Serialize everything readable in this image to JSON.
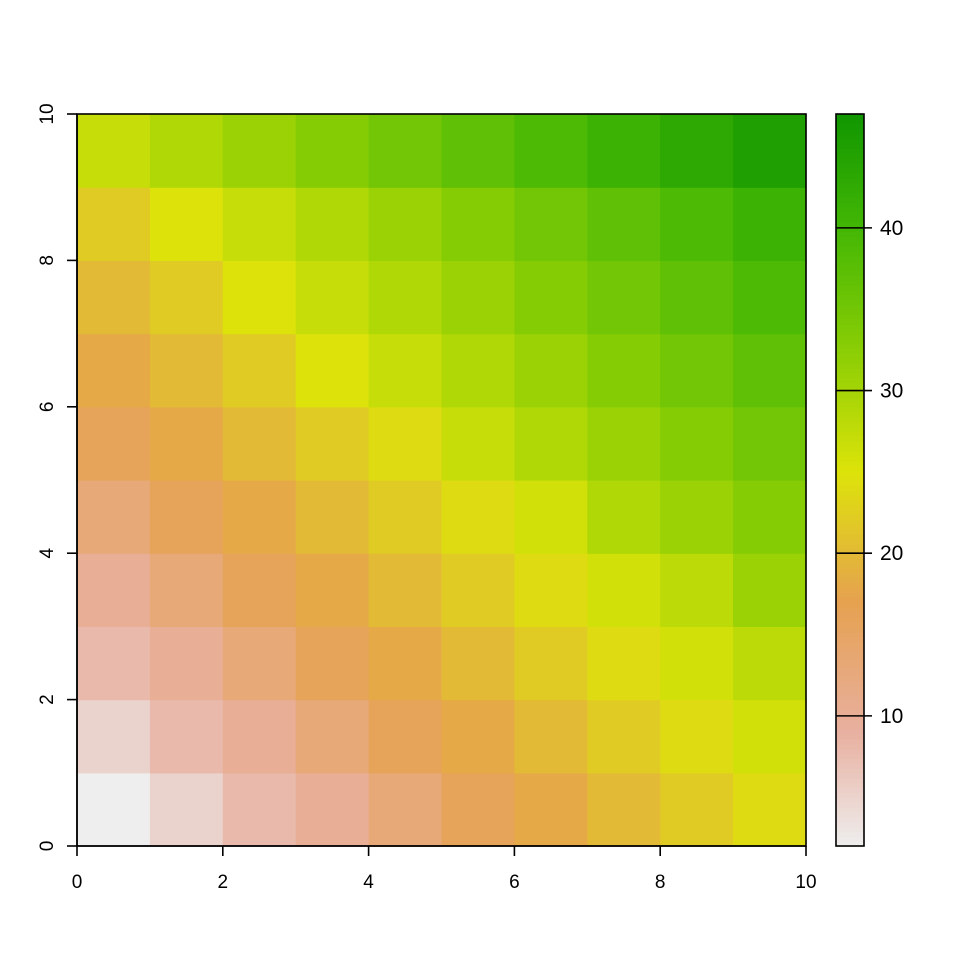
{
  "chart_data": {
    "type": "heatmap",
    "title": "",
    "xlabel": "",
    "ylabel": "",
    "xlim": [
      0,
      10
    ],
    "ylim": [
      0,
      10
    ],
    "x_ticks": [
      0,
      2,
      4,
      6,
      8,
      10
    ],
    "y_ticks": [
      0,
      2,
      4,
      6,
      8,
      10
    ],
    "x_tick_labels": [
      "0",
      "2",
      "4",
      "6",
      "8",
      "10"
    ],
    "y_tick_labels": [
      "0",
      "2",
      "4",
      "6",
      "8",
      "10"
    ],
    "cell_size": 1,
    "grid": false,
    "values": [
      [
        2,
        5,
        8,
        10,
        13,
        16,
        18,
        20,
        22,
        24
      ],
      [
        5,
        8,
        10,
        13,
        16,
        18,
        20,
        22,
        24,
        26
      ],
      [
        8,
        10,
        13,
        16,
        18,
        20,
        22,
        24,
        26,
        28
      ],
      [
        10,
        13,
        16,
        18,
        20,
        22,
        24,
        26,
        28,
        31
      ],
      [
        13,
        16,
        18,
        20,
        22,
        24,
        26,
        29,
        31,
        33
      ],
      [
        16,
        18,
        20,
        22,
        24,
        27,
        29,
        31,
        33,
        35
      ],
      [
        18,
        20,
        22,
        25,
        27,
        29,
        31,
        33,
        35,
        37
      ],
      [
        20,
        22,
        25,
        27,
        29,
        31,
        33,
        35,
        37,
        39
      ],
      [
        22,
        25,
        27,
        29,
        31,
        33,
        35,
        37,
        39,
        41
      ],
      [
        27,
        29,
        31,
        33,
        35,
        37,
        39,
        41,
        43,
        45
      ]
    ],
    "colorbar": {
      "range": [
        2,
        47
      ],
      "ticks": [
        10,
        20,
        30,
        40
      ],
      "tick_labels": [
        "10",
        "20",
        "30",
        "40"
      ],
      "position": "right"
    },
    "color_scale": [
      {
        "value": 2,
        "color": "#eeeeee"
      },
      {
        "value": 9,
        "color": "#e8b0a0"
      },
      {
        "value": 17,
        "color": "#e6a150"
      },
      {
        "value": 25,
        "color": "#dde30a"
      },
      {
        "value": 32,
        "color": "#8fcf05"
      },
      {
        "value": 40,
        "color": "#43b705"
      },
      {
        "value": 47,
        "color": "#119600"
      }
    ]
  }
}
